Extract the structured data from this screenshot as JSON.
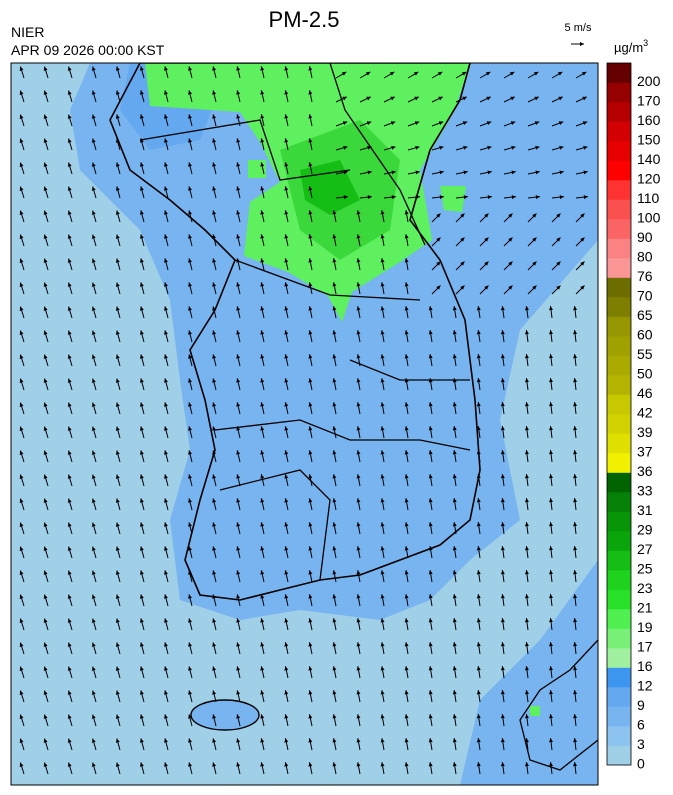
{
  "header": {
    "title": "PM-2.5",
    "agency": "NIER",
    "datetime": "APR 09 2026 00:00 KST",
    "wind_scale": "5 m/s"
  },
  "colorbar": {
    "unit": {
      "base": "µg/m",
      "sup": "3"
    },
    "ticks": [
      0,
      3,
      6,
      9,
      12,
      16,
      17,
      19,
      21,
      23,
      25,
      27,
      29,
      31,
      33,
      36,
      37,
      39,
      42,
      46,
      50,
      55,
      60,
      65,
      70,
      76,
      80,
      90,
      100,
      110,
      120,
      140,
      150,
      160,
      170,
      200
    ],
    "colors": [
      "#a0cfe8",
      "#8cc3ef",
      "#78b4ef",
      "#64a8f0",
      "#3c96f0",
      "#a0f0a0",
      "#78f078",
      "#50f050",
      "#28e028",
      "#1ed21e",
      "#14be14",
      "#0aa50a",
      "#089608",
      "#068006",
      "#006400",
      "#f0f000",
      "#e0e000",
      "#d2d200",
      "#c8c800",
      "#b4b400",
      "#aaaa00",
      "#a0a000",
      "#969600",
      "#7e7e00",
      "#6e6e00",
      "#fa9696",
      "#fa8282",
      "#fa6464",
      "#fa5050",
      "#ff3232",
      "#ff0000",
      "#e60000",
      "#d20000",
      "#b40000",
      "#960000",
      "#640000"
    ]
  }
}
